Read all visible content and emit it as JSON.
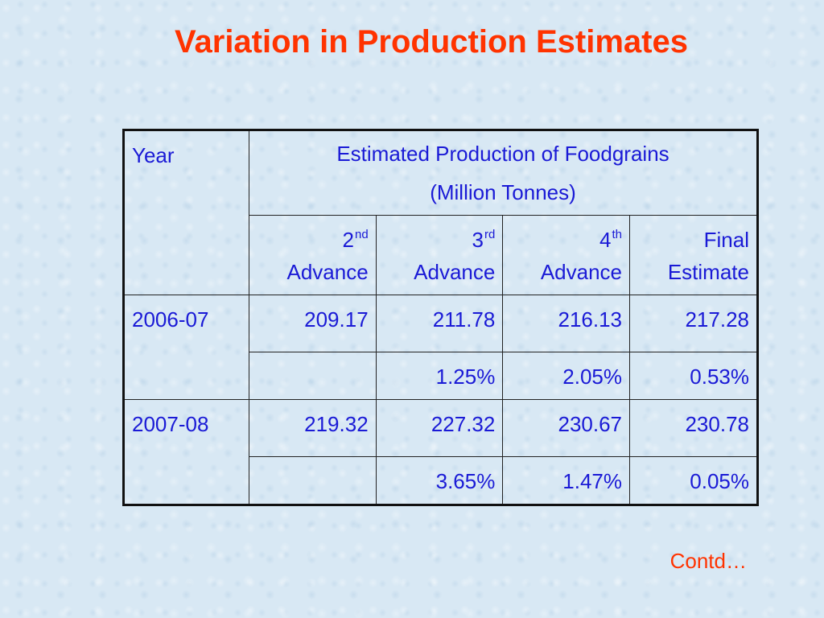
{
  "slide": {
    "title": "Variation in Production Estimates",
    "contd": "Contd…"
  },
  "table": {
    "year_label": "Year",
    "group_label_line1": "Estimated Production of Foodgrains",
    "group_label_line2": "(Million Tonnes)",
    "columns": [
      {
        "num": "2",
        "suffix": "nd",
        "word": "Advance"
      },
      {
        "num": "3",
        "suffix": "rd",
        "word": "Advance"
      },
      {
        "num": "4",
        "suffix": "th",
        "word": "Advance"
      },
      {
        "line1": "Final",
        "line2": "Estimate"
      }
    ],
    "rows": [
      {
        "year": "2006-07",
        "values": [
          "209.17",
          "211.78",
          "216.13",
          "217.28"
        ],
        "changes": [
          "",
          "1.25%",
          "2.05%",
          "0.53%"
        ]
      },
      {
        "year": "2007-08",
        "values": [
          "219.32",
          "227.32",
          "230.67",
          "230.78"
        ],
        "changes": [
          "",
          "3.65%",
          "1.47%",
          "0.05%"
        ]
      }
    ]
  }
}
